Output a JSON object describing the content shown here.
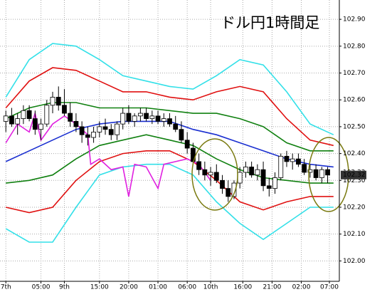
{
  "chart_data": {
    "type": "candlestick",
    "title": "ドル円1時間足",
    "xlim": [
      -1,
      57
    ],
    "ylim": [
      101.924,
      102.972
    ],
    "grid": true,
    "xticks": [
      {
        "value": 0,
        "label": "7th"
      },
      {
        "value": 6,
        "label": "05:00"
      },
      {
        "value": 10,
        "label": "9th"
      },
      {
        "value": 16,
        "label": "15:00"
      },
      {
        "value": 21,
        "label": "20:00"
      },
      {
        "value": 26,
        "label": "01:00"
      },
      {
        "value": 31,
        "label": "06:00"
      },
      {
        "value": 35,
        "label": "10th"
      },
      {
        "value": 40.5,
        "label": "16:00"
      },
      {
        "value": 45.5,
        "label": "21:00"
      },
      {
        "value": 50.5,
        "label": "02:00"
      },
      {
        "value": 55.3,
        "label": "07:00"
      }
    ],
    "yticks": [
      {
        "value": 102.9,
        "label": "102.90"
      },
      {
        "value": 102.8,
        "label": "102.80"
      },
      {
        "value": 102.7,
        "label": "102.70"
      },
      {
        "value": 102.6,
        "label": "102.60"
      },
      {
        "value": 102.5,
        "label": "102.50"
      },
      {
        "value": 102.4,
        "label": "102.40"
      },
      {
        "value": 102.3,
        "label": "102.30"
      },
      {
        "value": 102.2,
        "label": "102.20"
      },
      {
        "value": 102.1,
        "label": "102.10"
      },
      {
        "value": 102.0,
        "label": "102.00"
      }
    ],
    "last_price": 102.32,
    "last_price_label": "102.32",
    "lagging_price": 102.33,
    "lagging_price_label": "102.33",
    "candles": {
      "x": [
        0,
        1,
        2,
        3,
        4,
        5,
        6,
        7,
        8,
        9,
        10,
        11,
        12,
        13,
        14,
        15,
        16,
        17,
        18,
        19,
        20,
        21,
        22,
        23,
        24,
        25,
        26,
        27,
        28,
        29,
        30,
        31,
        32,
        33,
        34,
        35,
        36,
        37,
        38,
        39,
        40,
        41,
        42,
        43,
        44,
        45,
        46,
        47,
        48,
        49,
        50,
        51,
        52,
        53,
        54,
        55
      ],
      "open": [
        102.52,
        102.54,
        102.51,
        102.53,
        102.56,
        102.53,
        102.49,
        102.51,
        102.58,
        102.61,
        102.58,
        102.55,
        102.52,
        102.5,
        102.47,
        102.46,
        102.48,
        102.5,
        102.49,
        102.47,
        102.51,
        102.55,
        102.52,
        102.54,
        102.55,
        102.53,
        102.54,
        102.52,
        102.53,
        102.51,
        102.49,
        102.45,
        102.42,
        102.37,
        102.34,
        102.32,
        102.33,
        102.3,
        102.27,
        102.24,
        102.29,
        102.33,
        102.35,
        102.32,
        102.34,
        102.28,
        102.27,
        102.31,
        102.39,
        102.37,
        102.38,
        102.36,
        102.33,
        102.34,
        102.31,
        102.34
      ],
      "high": [
        102.56,
        102.57,
        102.55,
        102.58,
        102.58,
        102.56,
        102.53,
        102.6,
        102.63,
        102.65,
        102.64,
        102.59,
        102.55,
        102.52,
        102.5,
        102.5,
        102.52,
        102.53,
        102.51,
        102.52,
        102.57,
        102.58,
        102.55,
        102.57,
        102.57,
        102.56,
        102.56,
        102.55,
        102.55,
        102.54,
        102.52,
        102.48,
        102.44,
        102.4,
        102.37,
        102.35,
        102.36,
        102.32,
        102.3,
        102.3,
        102.35,
        102.37,
        102.37,
        102.36,
        102.37,
        102.31,
        102.33,
        102.4,
        102.41,
        102.4,
        102.4,
        102.38,
        102.36,
        102.36,
        102.35,
        102.35
      ],
      "low": [
        102.48,
        102.5,
        102.47,
        102.51,
        102.52,
        102.47,
        102.45,
        102.5,
        102.55,
        102.56,
        102.54,
        102.5,
        102.48,
        102.44,
        102.43,
        102.44,
        102.46,
        102.47,
        102.45,
        102.45,
        102.49,
        102.51,
        102.5,
        102.52,
        102.52,
        102.51,
        102.51,
        102.5,
        102.5,
        102.48,
        102.44,
        102.4,
        102.36,
        102.32,
        102.3,
        102.28,
        102.29,
        102.25,
        102.22,
        102.23,
        102.27,
        102.31,
        102.31,
        102.3,
        102.26,
        102.24,
        102.25,
        102.3,
        102.35,
        102.34,
        102.35,
        102.32,
        102.31,
        102.3,
        102.29,
        102.29
      ],
      "close": [
        102.54,
        102.51,
        102.53,
        102.56,
        102.53,
        102.49,
        102.51,
        102.58,
        102.61,
        102.58,
        102.55,
        102.52,
        102.5,
        102.47,
        102.46,
        102.48,
        102.5,
        102.49,
        102.47,
        102.51,
        102.55,
        102.52,
        102.54,
        102.55,
        102.53,
        102.54,
        102.52,
        102.53,
        102.51,
        102.49,
        102.45,
        102.42,
        102.37,
        102.34,
        102.32,
        102.33,
        102.3,
        102.27,
        102.24,
        102.29,
        102.33,
        102.35,
        102.32,
        102.34,
        102.28,
        102.27,
        102.31,
        102.39,
        102.37,
        102.38,
        102.36,
        102.33,
        102.34,
        102.31,
        102.34,
        102.32
      ]
    },
    "series": [
      {
        "color": "#33e0e8",
        "x": [
          0,
          4,
          8,
          12,
          16,
          20,
          24,
          28,
          32,
          36,
          40,
          44,
          48,
          52,
          56
        ],
        "values": [
          102.61,
          102.75,
          102.81,
          102.8,
          102.75,
          102.69,
          102.67,
          102.65,
          102.64,
          102.69,
          102.75,
          102.73,
          102.63,
          102.51,
          102.47
        ]
      },
      {
        "color": "#e01010",
        "x": [
          0,
          4,
          8,
          12,
          16,
          20,
          24,
          28,
          32,
          36,
          40,
          44,
          48,
          52,
          56
        ],
        "values": [
          102.57,
          102.67,
          102.72,
          102.71,
          102.67,
          102.63,
          102.63,
          102.61,
          102.6,
          102.63,
          102.65,
          102.63,
          102.53,
          102.45,
          102.43
        ]
      },
      {
        "color": "#108010",
        "x": [
          0,
          4,
          8,
          12,
          16,
          20,
          24,
          28,
          32,
          36,
          40,
          44,
          48,
          52,
          56
        ],
        "values": [
          102.53,
          102.57,
          102.59,
          102.59,
          102.57,
          102.57,
          102.57,
          102.56,
          102.55,
          102.55,
          102.53,
          102.5,
          102.44,
          102.41,
          102.41
        ]
      },
      {
        "color": "#1a2fd0",
        "x": [
          0,
          4,
          8,
          12,
          16,
          20,
          24,
          28,
          32,
          36,
          40,
          44,
          48,
          52,
          56
        ],
        "values": [
          102.37,
          102.41,
          102.45,
          102.49,
          102.51,
          102.52,
          102.52,
          102.52,
          102.49,
          102.47,
          102.44,
          102.41,
          102.38,
          102.36,
          102.35
        ]
      },
      {
        "color": "#108010",
        "x": [
          0,
          4,
          8,
          12,
          16,
          20,
          24,
          28,
          32,
          36,
          40,
          44,
          48,
          52,
          56
        ],
        "values": [
          102.29,
          102.3,
          102.32,
          102.38,
          102.43,
          102.45,
          102.47,
          102.45,
          102.43,
          102.38,
          102.34,
          102.31,
          102.3,
          102.29,
          102.29
        ]
      },
      {
        "color": "#e01010",
        "x": [
          0,
          4,
          8,
          12,
          16,
          20,
          24,
          28,
          32,
          36,
          40,
          44,
          48,
          52,
          56
        ],
        "values": [
          102.2,
          102.18,
          102.2,
          102.3,
          102.37,
          102.4,
          102.41,
          102.41,
          102.37,
          102.3,
          102.22,
          102.19,
          102.22,
          102.24,
          102.24
        ]
      },
      {
        "color": "#33e0e8",
        "x": [
          0,
          4,
          8,
          12,
          16,
          20,
          24,
          28,
          32,
          36,
          40,
          44,
          48,
          52,
          56
        ],
        "values": [
          102.12,
          102.07,
          102.07,
          102.2,
          102.32,
          102.35,
          102.36,
          102.36,
          102.32,
          102.22,
          102.14,
          102.08,
          102.14,
          102.2,
          102.2
        ]
      },
      {
        "color": "#e020e0",
        "x": [
          0,
          2,
          4,
          5,
          6,
          8,
          10,
          12,
          14,
          14.5,
          16,
          18,
          20,
          21,
          22,
          24,
          26,
          27,
          29,
          31,
          33,
          35
        ],
        "values": [
          102.44,
          102.51,
          102.48,
          102.55,
          102.45,
          102.51,
          102.54,
          102.51,
          102.47,
          102.36,
          102.38,
          102.34,
          102.35,
          102.24,
          102.36,
          102.35,
          102.27,
          102.36,
          102.37,
          102.38,
          102.36,
          102.3
        ]
      }
    ]
  }
}
